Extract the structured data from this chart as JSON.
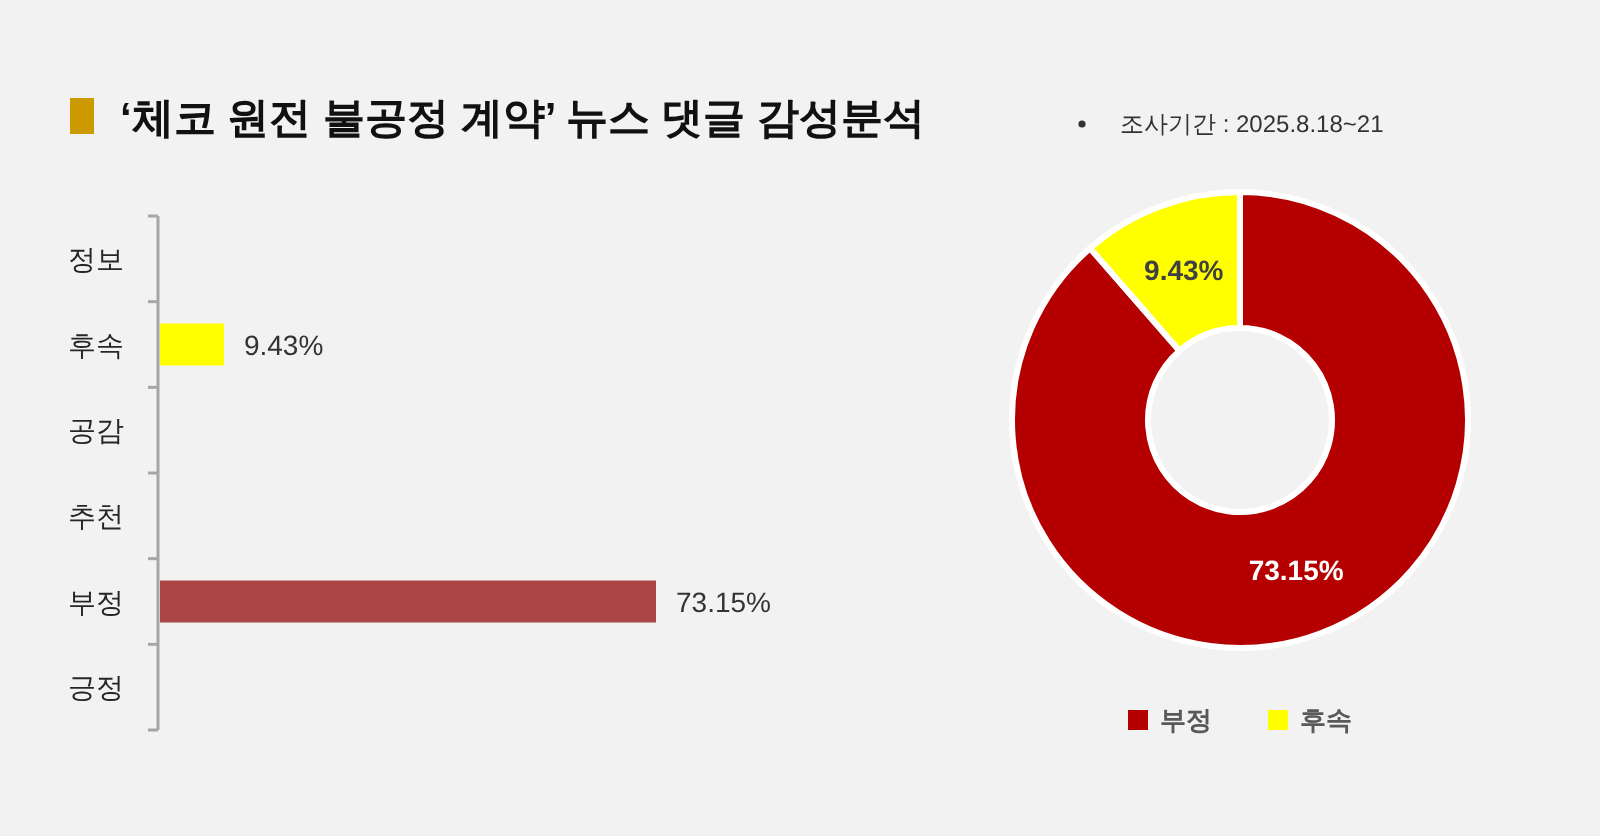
{
  "chart_data": [
    {
      "type": "bar",
      "orientation": "horizontal",
      "title": "‘체코 원전 불공정 계약’ 뉴스 댓글 감성분석",
      "categories": [
        "정보",
        "후속",
        "공감",
        "추천",
        "부정",
        "긍정"
      ],
      "values": [
        null,
        9.43,
        null,
        null,
        73.15,
        null
      ],
      "colors": [
        null,
        "#ffff00",
        null,
        null,
        "#aa4744",
        null
      ],
      "value_labels": [
        null,
        "9.43%",
        null,
        null,
        "73.15%",
        null
      ]
    },
    {
      "type": "donut",
      "annotations": [
        "조사기간 : 2025.8.18~21"
      ],
      "categories": [
        "부정",
        "후속"
      ],
      "values": [
        73.15,
        9.43
      ],
      "colors": [
        "#b40000",
        "#ffff00"
      ],
      "value_labels": [
        "73.15%",
        "9.43%"
      ],
      "legend": "bottom"
    }
  ]
}
